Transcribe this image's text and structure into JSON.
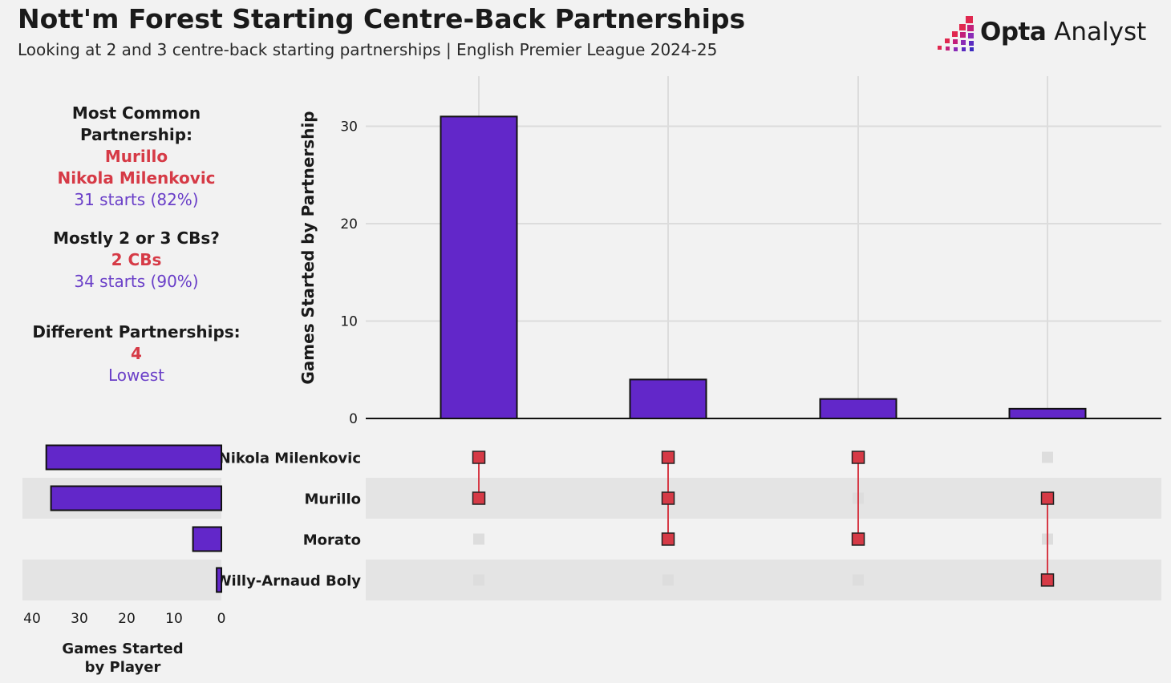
{
  "header": {
    "title": "Nott'm Forest Starting Centre-Back Partnerships",
    "subtitle": "Looking at 2 and 3 centre-back starting partnerships | English Premier League 2024-25"
  },
  "logo": {
    "brand": "Opta",
    "product": "Analyst"
  },
  "stats": {
    "common": {
      "label": "Most Common Partnership:",
      "player1": "Murillo",
      "player2": "Nikola Milenkovic",
      "detail": "31 starts (82%)"
    },
    "mostly": {
      "label": "Mostly 2 or 3 CBs?",
      "value": "2 CBs",
      "detail": "34 starts (90%)"
    },
    "different": {
      "label": "Different Partnerships:",
      "value": "4",
      "detail": "Lowest"
    }
  },
  "colors": {
    "bar": "#6227c9",
    "dot": "#d63a46",
    "inactive_dot": "#dddddd",
    "row_shade": "#e4e4e4",
    "grid": "#dcdcdc"
  },
  "chart_data": {
    "type": "upset",
    "ylabel": "Games Started by Partnership",
    "ylim": [
      0,
      35
    ],
    "yticks": [
      0,
      10,
      20,
      30
    ],
    "partnerships": [
      {
        "value": 31,
        "members": [
          "Nikola Milenkovic",
          "Murillo"
        ]
      },
      {
        "value": 4,
        "members": [
          "Nikola Milenkovic",
          "Murillo",
          "Morato"
        ]
      },
      {
        "value": 2,
        "members": [
          "Nikola Milenkovic",
          "Morato"
        ]
      },
      {
        "value": 1,
        "members": [
          "Murillo",
          "Willy-Arnaud Boly"
        ]
      }
    ],
    "players": [
      {
        "name": "Nikola Milenkovic",
        "starts": 37
      },
      {
        "name": "Murillo",
        "starts": 36
      },
      {
        "name": "Morato",
        "starts": 6
      },
      {
        "name": "Willy-Arnaud Boly",
        "starts": 1
      }
    ],
    "player_xlabel": [
      "Games Started",
      "by Player"
    ],
    "player_xlim": [
      0,
      40
    ],
    "player_xticks": [
      40,
      30,
      20,
      10,
      0
    ]
  }
}
